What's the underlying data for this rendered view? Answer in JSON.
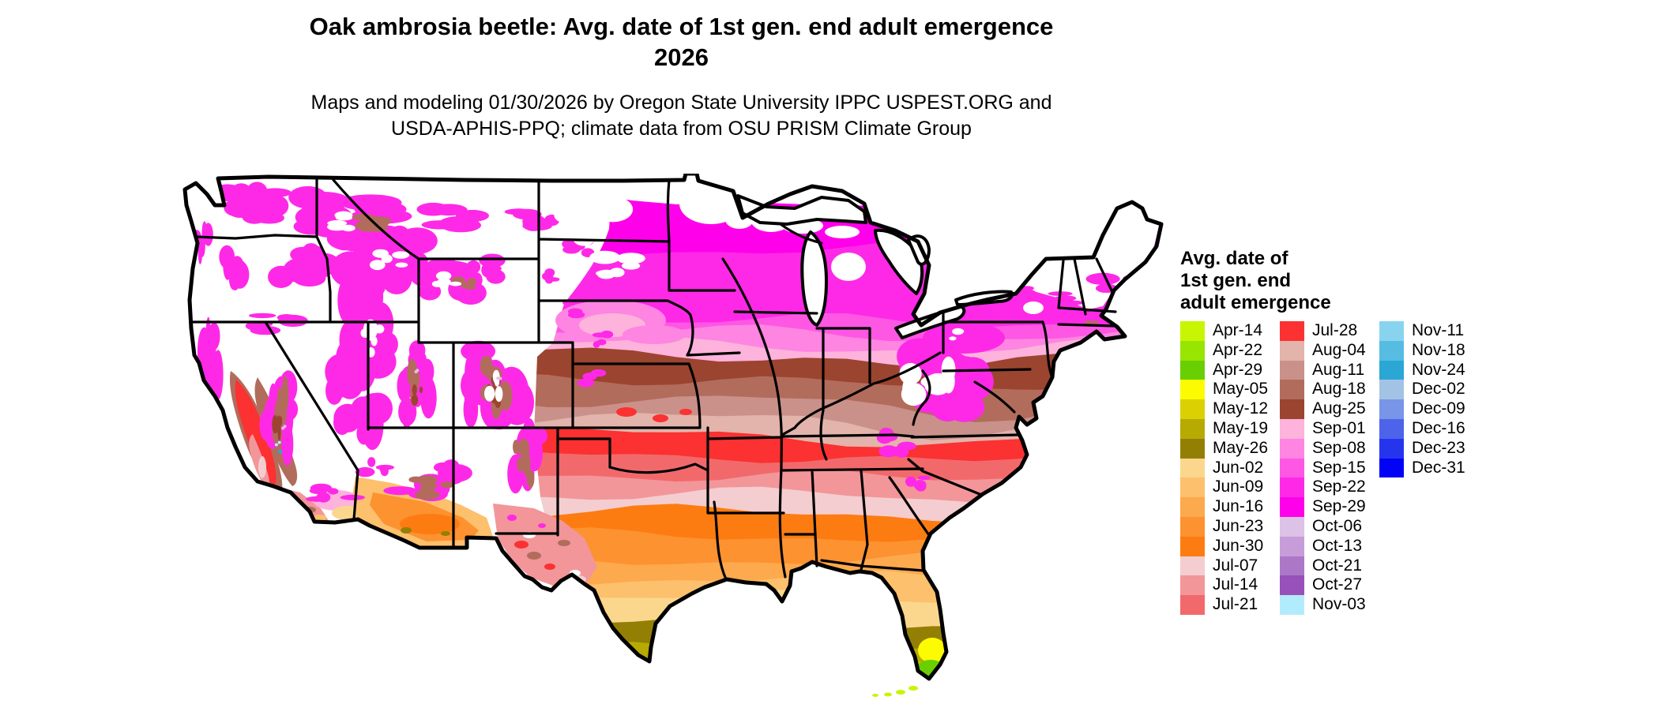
{
  "title": {
    "line1": "Oak ambrosia beetle: Avg. date of 1st gen. end adult emergence",
    "line2": "2026"
  },
  "subtitle": {
    "line1": "Maps and modeling 01/30/2026 by Oregon State University IPPC USPEST.ORG and",
    "line2": "USDA-APHIS-PPQ; climate data from OSU PRISM Climate Group"
  },
  "legend": {
    "title_lines": [
      "Avg. date of",
      "1st gen. end",
      "adult emergence"
    ],
    "columns": [
      {
        "items": [
          {
            "label": "Apr-14",
            "color": "#c8f501"
          },
          {
            "label": "Apr-22",
            "color": "#97e501"
          },
          {
            "label": "Apr-29",
            "color": "#69cf02"
          },
          {
            "label": "May-05",
            "color": "#fdfb02"
          },
          {
            "label": "May-12",
            "color": "#dbd102"
          },
          {
            "label": "May-19",
            "color": "#b7aa03"
          },
          {
            "label": "May-26",
            "color": "#937f04"
          },
          {
            "label": "Jun-02",
            "color": "#fbd78e"
          },
          {
            "label": "Jun-09",
            "color": "#fdc06d"
          },
          {
            "label": "Jun-16",
            "color": "#fda94e"
          },
          {
            "label": "Jun-23",
            "color": "#fd9230"
          },
          {
            "label": "Jun-30",
            "color": "#fd7c11"
          },
          {
            "label": "Jul-07",
            "color": "#f4cdd0"
          },
          {
            "label": "Jul-14",
            "color": "#f29699"
          },
          {
            "label": "Jul-21",
            "color": "#f2696c"
          }
        ]
      },
      {
        "items": [
          {
            "label": "Jul-28",
            "color": "#fb3132"
          },
          {
            "label": "Aug-04",
            "color": "#e2b4ab"
          },
          {
            "label": "Aug-11",
            "color": "#c9918a"
          },
          {
            "label": "Aug-18",
            "color": "#b26c5c"
          },
          {
            "label": "Aug-25",
            "color": "#9b442f"
          },
          {
            "label": "Sep-01",
            "color": "#fdb3dc"
          },
          {
            "label": "Sep-08",
            "color": "#fe85e1"
          },
          {
            "label": "Sep-15",
            "color": "#fe57e4"
          },
          {
            "label": "Sep-22",
            "color": "#fe29e7"
          },
          {
            "label": "Sep-29",
            "color": "#fe01ea"
          },
          {
            "label": "Oct-06",
            "color": "#dcc2e6"
          },
          {
            "label": "Oct-13",
            "color": "#c69dd8"
          },
          {
            "label": "Oct-21",
            "color": "#ad77c8"
          },
          {
            "label": "Oct-27",
            "color": "#9751b9"
          },
          {
            "label": "Nov-03",
            "color": "#b2ecfc"
          }
        ]
      },
      {
        "items": [
          {
            "label": "Nov-11",
            "color": "#88d4ef"
          },
          {
            "label": "Nov-18",
            "color": "#56bce2"
          },
          {
            "label": "Nov-24",
            "color": "#2ba7d6"
          },
          {
            "label": "Dec-02",
            "color": "#a3c3e4"
          },
          {
            "label": "Dec-09",
            "color": "#7995e8"
          },
          {
            "label": "Dec-16",
            "color": "#4d64ea"
          },
          {
            "label": "Dec-23",
            "color": "#2535ee"
          },
          {
            "label": "Dec-31",
            "color": "#0203f6"
          }
        ]
      }
    ]
  },
  "map": {
    "region": "Contiguous United States",
    "kind": "raster choropleth of average emergence date with state borders",
    "no_data_color": "#ffffff",
    "border_color": "#000000",
    "pattern_north_to_south": [
      "white (no data) across far northern tier, New England and western mountains",
      "Sep magentas/pinks across northern plains, Great Lakes and Northeast",
      "Aug browns across central Midwest and mid-Atlantic",
      "Jul reds/salmons across Kansas-Missouri-Kentucky-Virginia belt",
      "Jun oranges across the South",
      "May olives/yellows in south Texas and central Florida",
      "Apr greens at the southern tip of Florida"
    ]
  }
}
